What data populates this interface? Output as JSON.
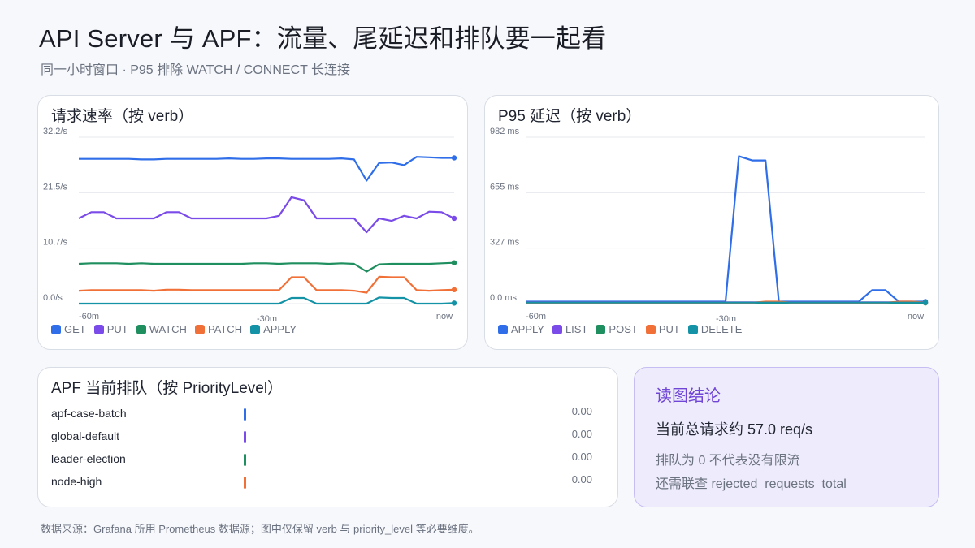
{
  "header": {
    "title": "API Server 与 APF：流量、尾延迟和排队要一起看",
    "subtitle": "同一小时窗口 · P95 排除 WATCH / CONNECT 长连接"
  },
  "panels": {
    "rate": {
      "title": "请求速率（按 verb）"
    },
    "latency": {
      "title": "P95 延迟（按 verb）"
    },
    "apf": {
      "title": "APF 当前排队（按 PriorityLevel）"
    }
  },
  "conclusion": {
    "title": "读图结论",
    "main": "当前总请求约 57.0 req/s",
    "note1": "排队为 0 不代表没有限流",
    "note2": "还需联查 rejected_requests_total"
  },
  "footer": "数据来源：Grafana 所用 Prometheus 数据源；图中仅保留 verb 与 priority_level 等必要维度。",
  "colors": {
    "blue": "#2f6ee8",
    "purple": "#7a4be8",
    "green": "#1f8f5f",
    "orange": "#f07038",
    "teal": "#1593a6"
  },
  "chart_data": [
    {
      "type": "line",
      "title": "请求速率（按 verb）",
      "x_tick_labels": [
        "-60m",
        "-30m",
        "now"
      ],
      "y_tick_labels": [
        "32.2/s",
        "21.5/s",
        "10.7/s",
        "0.0/s"
      ],
      "ylim": [
        0,
        32.2
      ],
      "xlim": [
        -60,
        0
      ],
      "x": [
        -60,
        -58,
        -56,
        -54,
        -52,
        -50,
        -48,
        -46,
        -44,
        -42,
        -40,
        -38,
        -36,
        -34,
        -32,
        -30,
        -28,
        -26,
        -24,
        -22,
        -20,
        -18,
        -16,
        -14,
        -12,
        -10,
        -8,
        -6,
        -4,
        -2,
        0
      ],
      "series": [
        {
          "name": "GET",
          "color": "#2f6ee8",
          "values": [
            28.0,
            28.0,
            28.0,
            28.0,
            28.0,
            27.9,
            27.9,
            28.0,
            28.0,
            28.0,
            28.0,
            28.0,
            28.1,
            28.0,
            28.0,
            28.1,
            28.1,
            28.0,
            28.0,
            28.0,
            28.0,
            28.1,
            27.9,
            23.8,
            27.2,
            27.3,
            26.8,
            28.4,
            28.3,
            28.2,
            28.2
          ]
        },
        {
          "name": "PUT",
          "color": "#7a4be8",
          "values": [
            16.5,
            17.7,
            17.7,
            16.5,
            16.5,
            16.5,
            16.5,
            17.7,
            17.7,
            16.5,
            16.5,
            16.5,
            16.5,
            16.5,
            16.5,
            16.5,
            17.0,
            20.6,
            20.0,
            16.5,
            16.5,
            16.5,
            16.5,
            13.8,
            16.5,
            16.0,
            17.0,
            16.5,
            17.8,
            17.7,
            16.5
          ]
        },
        {
          "name": "WATCH",
          "color": "#1f8f5f",
          "values": [
            7.7,
            7.8,
            7.8,
            7.8,
            7.7,
            7.8,
            7.7,
            7.7,
            7.7,
            7.7,
            7.7,
            7.7,
            7.7,
            7.7,
            7.8,
            7.8,
            7.7,
            7.8,
            7.8,
            7.8,
            7.7,
            7.8,
            7.7,
            6.2,
            7.6,
            7.7,
            7.7,
            7.7,
            7.7,
            7.8,
            7.9
          ]
        },
        {
          "name": "PATCH",
          "color": "#f07038",
          "values": [
            2.5,
            2.6,
            2.6,
            2.6,
            2.6,
            2.6,
            2.5,
            2.7,
            2.7,
            2.6,
            2.6,
            2.6,
            2.6,
            2.6,
            2.6,
            2.6,
            2.6,
            5.1,
            5.1,
            2.6,
            2.6,
            2.6,
            2.5,
            2.1,
            5.2,
            5.1,
            5.1,
            2.6,
            2.5,
            2.6,
            2.7
          ]
        },
        {
          "name": "APPLY",
          "color": "#1593a6",
          "values": [
            0.0,
            0.0,
            0.0,
            0.0,
            0.0,
            0.0,
            0.0,
            0.0,
            0.0,
            0.0,
            0.0,
            0.0,
            0.0,
            0.0,
            0.0,
            0.0,
            0.0,
            1.1,
            1.1,
            0.0,
            0.0,
            0.0,
            0.0,
            0.0,
            1.2,
            1.1,
            1.1,
            0.0,
            0.0,
            0.0,
            0.1
          ]
        }
      ],
      "grid": true,
      "legend": "bottom-left"
    },
    {
      "type": "line",
      "title": "P95 延迟（按 verb）",
      "x_tick_labels": [
        "-60m",
        "-30m",
        "now"
      ],
      "y_tick_labels": [
        "982 ms",
        "655 ms",
        "327 ms",
        "0.0 ms"
      ],
      "ylim": [
        0,
        982
      ],
      "xlim": [
        -60,
        0
      ],
      "x": [
        -60,
        -58,
        -56,
        -54,
        -52,
        -50,
        -48,
        -46,
        -44,
        -42,
        -40,
        -38,
        -36,
        -34,
        -32,
        -30,
        -28,
        -26,
        -24,
        -22,
        -20,
        -18,
        -16,
        -14,
        -12,
        -10,
        -8,
        -6,
        -4,
        -2,
        0
      ],
      "series": [
        {
          "name": "APPLY",
          "color": "#2f6ee8",
          "values": [
            12,
            12,
            12,
            12,
            12,
            12,
            12,
            12,
            12,
            12,
            12,
            12,
            12,
            12,
            12,
            12,
            870,
            845,
            845,
            12,
            12,
            12,
            12,
            12,
            12,
            12,
            80,
            80,
            12,
            12,
            12
          ]
        },
        {
          "name": "LIST",
          "color": "#7a4be8",
          "values": [
            8,
            8,
            8,
            8,
            8,
            8,
            8,
            8,
            8,
            8,
            8,
            8,
            8,
            8,
            8,
            8,
            8,
            8,
            8,
            8,
            8,
            8,
            8,
            8,
            8,
            8,
            8,
            8,
            8,
            8,
            8
          ]
        },
        {
          "name": "POST",
          "color": "#1f8f5f",
          "values": [
            4,
            4,
            4,
            4,
            4,
            4,
            4,
            4,
            4,
            4,
            4,
            4,
            4,
            4,
            4,
            4,
            4,
            4,
            4,
            4,
            4,
            4,
            4,
            4,
            4,
            4,
            4,
            4,
            4,
            4,
            4
          ]
        },
        {
          "name": "PUT",
          "color": "#f07038",
          "values": [
            5,
            5,
            5,
            5,
            5,
            5,
            5,
            5,
            5,
            5,
            5,
            5,
            5,
            5,
            5,
            5,
            5,
            5,
            12,
            12,
            5,
            5,
            5,
            5,
            5,
            5,
            5,
            5,
            12,
            12,
            6
          ]
        },
        {
          "name": "DELETE",
          "color": "#1593a6",
          "values": [
            6,
            6,
            6,
            6,
            6,
            6,
            6,
            6,
            6,
            6,
            6,
            6,
            6,
            6,
            6,
            6,
            6,
            6,
            6,
            6,
            6,
            6,
            6,
            6,
            6,
            6,
            6,
            6,
            6,
            6,
            6
          ]
        }
      ],
      "grid": true,
      "legend": "bottom-left"
    },
    {
      "type": "bar",
      "title": "APF 当前排队（按 PriorityLevel）",
      "categories": [
        "apf-case-batch",
        "global-default",
        "leader-election",
        "node-high"
      ],
      "values": [
        0.0,
        0.0,
        0.0,
        0.0
      ],
      "value_labels": [
        "0.00",
        "0.00",
        "0.00",
        "0.00"
      ],
      "colors": [
        "#2f6ee8",
        "#7a4be8",
        "#1f8f5f",
        "#f07038"
      ]
    }
  ]
}
